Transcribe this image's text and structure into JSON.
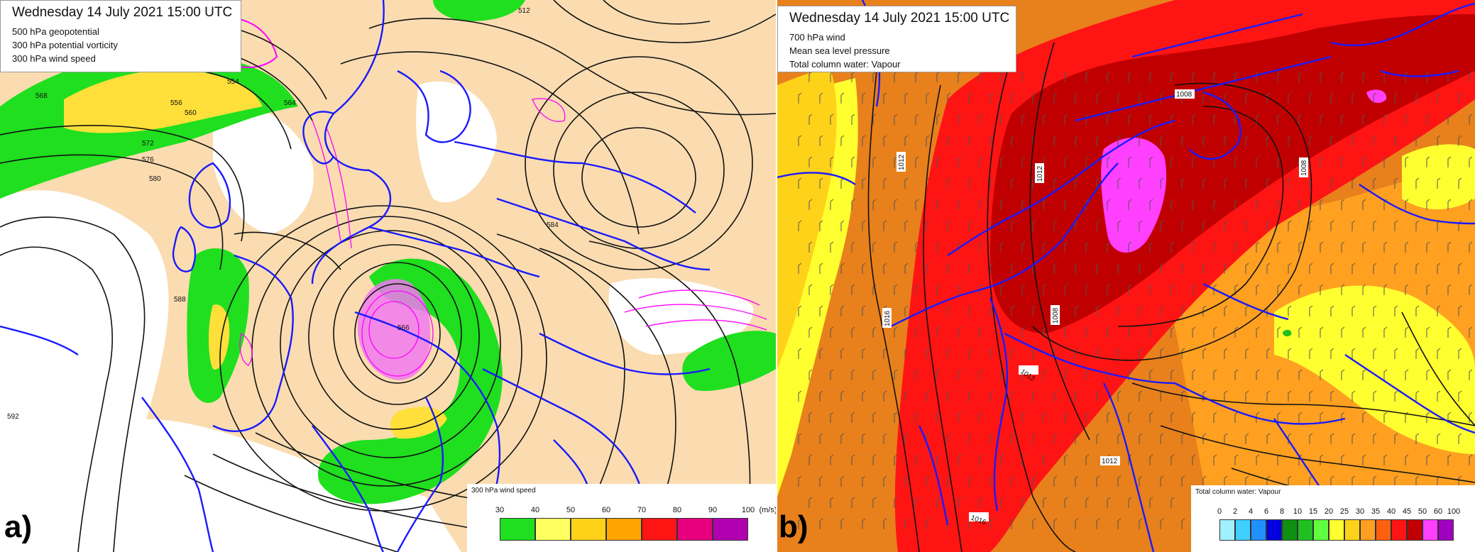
{
  "panel_a": {
    "header": {
      "title": "Wednesday 14 July 2021 15:00 UTC",
      "line1": "500 hPa geopotential",
      "line2": "300 hPa potential vorticity",
      "line3": "300 hPa wind speed"
    },
    "label": "a)",
    "legend": {
      "title": "300 hPa wind speed",
      "ticks": [
        "30",
        "40",
        "50",
        "60",
        "70",
        "80",
        "90",
        "100"
      ],
      "unit": "(m/s)",
      "colors": [
        "#1fdf1f",
        "#ffff60",
        "#ffd21a",
        "#ffa500",
        "#ff1414",
        "#e6007e",
        "#b000b0"
      ]
    },
    "contour_labels": [
      "512",
      "568",
      "556",
      "554",
      "560",
      "572",
      "576",
      "580",
      "584",
      "588",
      "592",
      "566",
      "564"
    ],
    "colors": {
      "background": "#fadcb0",
      "coast": "#1a1aff",
      "contour": "#111111",
      "pv": "#ff00ff",
      "jet": "#1fdf1f"
    }
  },
  "panel_b": {
    "header": {
      "title": "Wednesday 14 July 2021 15:00 UTC",
      "line1": "700 hPa wind",
      "line2": "Mean sea level pressure",
      "line3": "Total column water: Vapour"
    },
    "label": "b)",
    "legend": {
      "title": "Total column water: Vapour",
      "ticks": [
        "0",
        "2",
        "4",
        "6",
        "8",
        "10",
        "15",
        "20",
        "25",
        "30",
        "35",
        "40",
        "45",
        "50",
        "60",
        "100"
      ],
      "colors": [
        "#a0f0ff",
        "#40d0ff",
        "#2090ff",
        "#0000e0",
        "#109010",
        "#20c020",
        "#60ff40",
        "#ffff30",
        "#ffd21a",
        "#ffa020",
        "#ff6010",
        "#ff1414",
        "#c00000",
        "#ff40ff",
        "#a000c0"
      ]
    },
    "isobar_labels": [
      "1008",
      "1008",
      "1012",
      "1012",
      "1012",
      "1012",
      "1016",
      "1016",
      "1008"
    ],
    "colors": {
      "background": "#e8801c",
      "coast": "#1a1aff",
      "isobar": "#111111"
    }
  }
}
